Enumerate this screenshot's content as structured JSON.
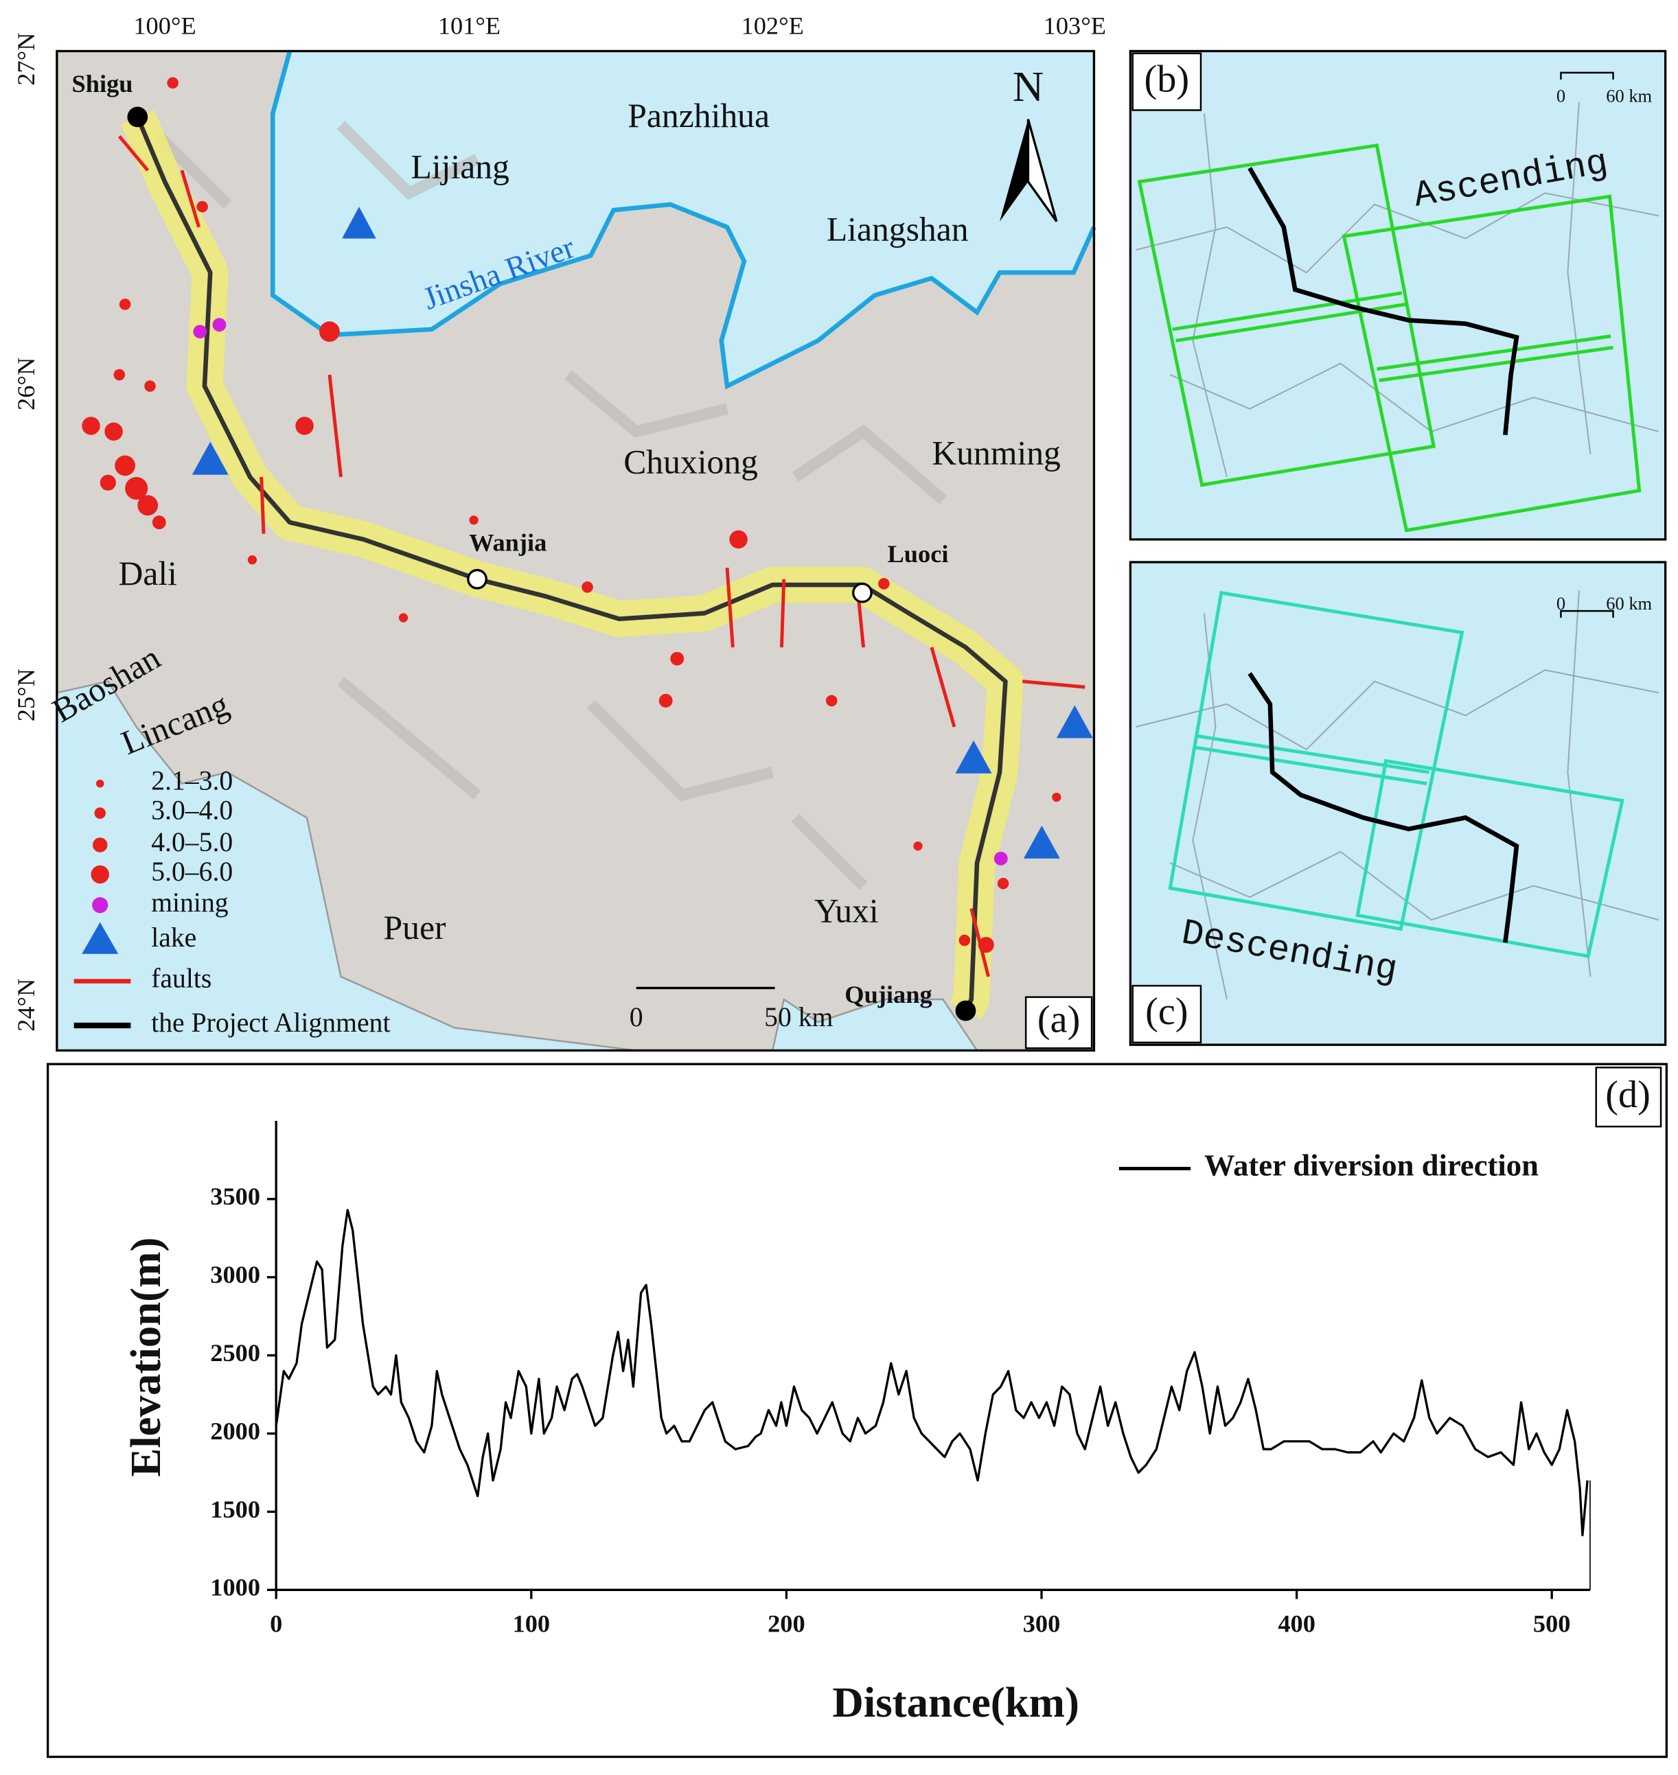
{
  "map_a": {
    "panel": "(a)",
    "lon_labels": [
      "100°E",
      "101°E",
      "102°E",
      "103°E"
    ],
    "lat_labels": [
      "27°N",
      "26°N",
      "25°N",
      "24°N"
    ],
    "regions": [
      "Panzhihua",
      "Lijiang",
      "Liangshan",
      "Chuxiong",
      "Kunming",
      "Dali",
      "Baoshan",
      "Lincang",
      "Puer",
      "Yuxi"
    ],
    "river": "Jinsha River",
    "sites": [
      "Shigu",
      "Wanjia",
      "Luoci",
      "Qujiang"
    ],
    "north": "N",
    "scale": [
      "0",
      "50 km"
    ],
    "legend": [
      "2.1–3.0",
      "3.0–4.0",
      "4.0–5.0",
      "5.0–6.0",
      "mining",
      "lake",
      "faults",
      "the Project Alignment"
    ]
  },
  "panel_b": {
    "panel": "(b)",
    "mode": "Ascending",
    "scale": [
      "0",
      "60 km"
    ]
  },
  "panel_c": {
    "panel": "(c)",
    "mode": "Descending",
    "scale": [
      "0",
      "60 km"
    ]
  },
  "chart_data": {
    "type": "line",
    "panel": "(d)",
    "xlabel": "Distance(km)",
    "ylabel": "Elevation(m)",
    "xlim": [
      0,
      515
    ],
    "ylim": [
      1000,
      4000
    ],
    "xticks": [
      0,
      100,
      200,
      300,
      400,
      500
    ],
    "yticks": [
      1000,
      1500,
      2000,
      2500,
      3000,
      3500
    ],
    "series": [
      {
        "name": "Water diversion direction",
        "color": "#000000",
        "x": [
          0,
          3,
          5,
          8,
          10,
          13,
          16,
          18,
          20,
          23,
          26,
          28,
          30,
          32,
          34,
          36,
          38,
          40,
          43,
          45,
          47,
          49,
          52,
          55,
          58,
          61,
          63,
          65,
          68,
          72,
          75,
          77,
          79,
          81,
          83,
          85,
          88,
          90,
          92,
          95,
          98,
          100,
          103,
          105,
          108,
          110,
          113,
          116,
          118,
          120,
          122,
          125,
          128,
          130,
          132,
          134,
          136,
          138,
          140,
          143,
          145,
          147,
          149,
          151,
          153,
          156,
          159,
          162,
          165,
          168,
          171,
          173,
          176,
          180,
          185,
          188,
          190,
          193,
          196,
          198,
          200,
          203,
          206,
          209,
          212,
          215,
          218,
          222,
          225,
          228,
          231,
          235,
          238,
          241,
          244,
          247,
          250,
          253,
          256,
          259,
          262,
          265,
          268,
          272,
          275,
          278,
          281,
          284,
          287,
          290,
          293,
          296,
          299,
          302,
          305,
          308,
          311,
          314,
          317,
          320,
          323,
          326,
          329,
          332,
          335,
          338,
          341,
          345,
          348,
          351,
          354,
          357,
          360,
          363,
          366,
          369,
          372,
          375,
          378,
          381,
          384,
          387,
          390,
          395,
          400,
          405,
          410,
          415,
          420,
          425,
          430,
          433,
          438,
          442,
          446,
          449,
          452,
          455,
          460,
          465,
          470,
          475,
          480,
          485,
          488,
          491,
          494,
          497,
          500,
          503,
          506,
          509,
          511,
          512,
          514
        ],
        "values": [
          2050,
          2400,
          2350,
          2450,
          2700,
          2900,
          3100,
          3050,
          2550,
          2600,
          3200,
          3430,
          3300,
          3000,
          2700,
          2500,
          2300,
          2250,
          2300,
          2250,
          2500,
          2200,
          2100,
          1950,
          1880,
          2050,
          2400,
          2250,
          2100,
          1900,
          1800,
          1700,
          1600,
          1850,
          2000,
          1700,
          1900,
          2200,
          2100,
          2400,
          2300,
          2000,
          2350,
          2000,
          2100,
          2300,
          2150,
          2350,
          2380,
          2300,
          2200,
          2050,
          2100,
          2300,
          2500,
          2650,
          2400,
          2600,
          2300,
          2900,
          2950,
          2700,
          2400,
          2100,
          2000,
          2050,
          1950,
          1950,
          2050,
          2150,
          2200,
          2100,
          1950,
          1900,
          1920,
          1980,
          2000,
          2150,
          2050,
          2200,
          2050,
          2300,
          2150,
          2100,
          2000,
          2100,
          2200,
          2000,
          1950,
          2100,
          2000,
          2050,
          2200,
          2450,
          2250,
          2400,
          2100,
          2000,
          1950,
          1900,
          1850,
          1950,
          2000,
          1900,
          1700,
          2000,
          2250,
          2300,
          2400,
          2150,
          2100,
          2200,
          2100,
          2200,
          2050,
          2300,
          2250,
          2000,
          1900,
          2100,
          2300,
          2050,
          2200,
          2000,
          1850,
          1750,
          1800,
          1900,
          2100,
          2300,
          2150,
          2400,
          2520,
          2300,
          2000,
          2300,
          2050,
          2100,
          2200,
          2350,
          2150,
          1900,
          1900,
          1950,
          1950,
          1950,
          1900,
          1900,
          1880,
          1880,
          1950,
          1880,
          2000,
          1950,
          2100,
          2340,
          2100,
          2000,
          2100,
          2050,
          1900,
          1850,
          1880,
          1800,
          2200,
          1900,
          2000,
          1880,
          1800,
          1900,
          2150,
          1950,
          1650,
          1350,
          1700
        ]
      }
    ]
  }
}
